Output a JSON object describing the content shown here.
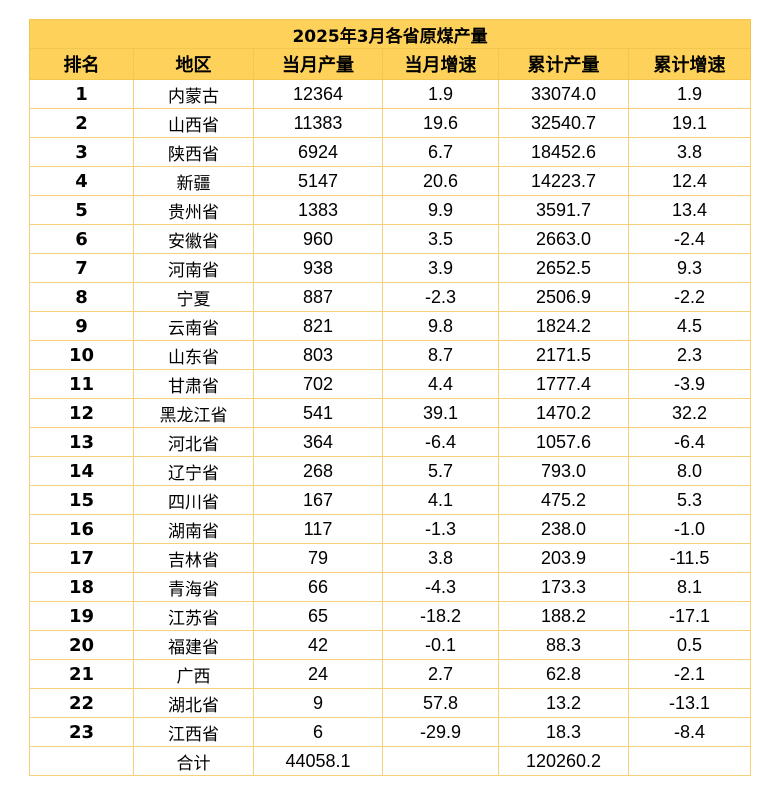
{
  "title": "2025年3月各省原煤产量",
  "columns": [
    "排名",
    "地区",
    "当月产量",
    "当月增速",
    "累计产量",
    "累计增速"
  ],
  "rows": [
    {
      "rank": "1",
      "region": "内蒙古",
      "month_output": "12364",
      "month_growth": "1.9",
      "cum_output": "33074.0",
      "cum_growth": "1.9"
    },
    {
      "rank": "2",
      "region": "山西省",
      "month_output": "11383",
      "month_growth": "19.6",
      "cum_output": "32540.7",
      "cum_growth": "19.1"
    },
    {
      "rank": "3",
      "region": "陕西省",
      "month_output": "6924",
      "month_growth": "6.7",
      "cum_output": "18452.6",
      "cum_growth": "3.8"
    },
    {
      "rank": "4",
      "region": "新疆",
      "month_output": "5147",
      "month_growth": "20.6",
      "cum_output": "14223.7",
      "cum_growth": "12.4"
    },
    {
      "rank": "5",
      "region": "贵州省",
      "month_output": "1383",
      "month_growth": "9.9",
      "cum_output": "3591.7",
      "cum_growth": "13.4"
    },
    {
      "rank": "6",
      "region": "安徽省",
      "month_output": "960",
      "month_growth": "3.5",
      "cum_output": "2663.0",
      "cum_growth": "-2.4"
    },
    {
      "rank": "7",
      "region": "河南省",
      "month_output": "938",
      "month_growth": "3.9",
      "cum_output": "2652.5",
      "cum_growth": "9.3"
    },
    {
      "rank": "8",
      "region": "宁夏",
      "month_output": "887",
      "month_growth": "-2.3",
      "cum_output": "2506.9",
      "cum_growth": "-2.2"
    },
    {
      "rank": "9",
      "region": "云南省",
      "month_output": "821",
      "month_growth": "9.8",
      "cum_output": "1824.2",
      "cum_growth": "4.5"
    },
    {
      "rank": "10",
      "region": "山东省",
      "month_output": "803",
      "month_growth": "8.7",
      "cum_output": "2171.5",
      "cum_growth": "2.3"
    },
    {
      "rank": "11",
      "region": "甘肃省",
      "month_output": "702",
      "month_growth": "4.4",
      "cum_output": "1777.4",
      "cum_growth": "-3.9"
    },
    {
      "rank": "12",
      "region": "黑龙江省",
      "month_output": "541",
      "month_growth": "39.1",
      "cum_output": "1470.2",
      "cum_growth": "32.2"
    },
    {
      "rank": "13",
      "region": "河北省",
      "month_output": "364",
      "month_growth": "-6.4",
      "cum_output": "1057.6",
      "cum_growth": "-6.4"
    },
    {
      "rank": "14",
      "region": "辽宁省",
      "month_output": "268",
      "month_growth": "5.7",
      "cum_output": "793.0",
      "cum_growth": "8.0"
    },
    {
      "rank": "15",
      "region": "四川省",
      "month_output": "167",
      "month_growth": "4.1",
      "cum_output": "475.2",
      "cum_growth": "5.3"
    },
    {
      "rank": "16",
      "region": "湖南省",
      "month_output": "117",
      "month_growth": "-1.3",
      "cum_output": "238.0",
      "cum_growth": "-1.0"
    },
    {
      "rank": "17",
      "region": "吉林省",
      "month_output": "79",
      "month_growth": "3.8",
      "cum_output": "203.9",
      "cum_growth": "-11.5"
    },
    {
      "rank": "18",
      "region": "青海省",
      "month_output": "66",
      "month_growth": "-4.3",
      "cum_output": "173.3",
      "cum_growth": "8.1"
    },
    {
      "rank": "19",
      "region": "江苏省",
      "month_output": "65",
      "month_growth": "-18.2",
      "cum_output": "188.2",
      "cum_growth": "-17.1"
    },
    {
      "rank": "20",
      "region": "福建省",
      "month_output": "42",
      "month_growth": "-0.1",
      "cum_output": "88.3",
      "cum_growth": "0.5"
    },
    {
      "rank": "21",
      "region": "广西",
      "month_output": "24",
      "month_growth": "2.7",
      "cum_output": "62.8",
      "cum_growth": "-2.1"
    },
    {
      "rank": "22",
      "region": "湖北省",
      "month_output": "9",
      "month_growth": "57.8",
      "cum_output": "13.2",
      "cum_growth": "-13.1"
    },
    {
      "rank": "23",
      "region": "江西省",
      "month_output": "6",
      "month_growth": "-29.9",
      "cum_output": "18.3",
      "cum_growth": "-8.4"
    }
  ],
  "total": {
    "rank": "",
    "region": "合计",
    "month_output": "44058.1",
    "month_growth": "",
    "cum_output": "120260.2",
    "cum_growth": ""
  },
  "colors": {
    "header_bg": "#fdd15a",
    "grid_line": "#f5d27a"
  }
}
